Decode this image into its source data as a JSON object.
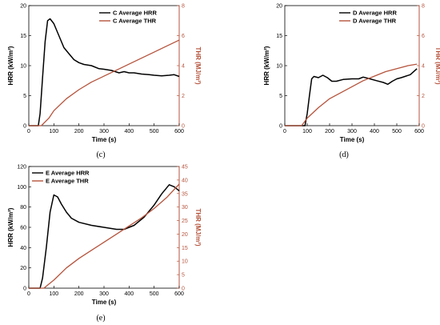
{
  "colors": {
    "hrr": "#000000",
    "thr": "#b5533c"
  },
  "chart_data": [
    {
      "type": "line",
      "caption": "(c)",
      "xlabel": "Time (s)",
      "ylabel": "HRR (kW/m²)",
      "y2label": "THR (MJ/m²)",
      "xlim": [
        0,
        600
      ],
      "ylim": [
        0,
        20
      ],
      "y2lim": [
        0,
        8
      ],
      "xticks": [
        0,
        100,
        200,
        300,
        400,
        500,
        600
      ],
      "yticks": [
        0,
        5,
        10,
        15,
        20
      ],
      "y2ticks": [
        0,
        2,
        4,
        6,
        8
      ],
      "legend": "top-right",
      "series": [
        {
          "name": "C  Average HRR",
          "axis": "left",
          "x": [
            0,
            38,
            45,
            55,
            65,
            75,
            85,
            100,
            120,
            140,
            160,
            180,
            200,
            220,
            250,
            280,
            300,
            330,
            360,
            380,
            400,
            420,
            450,
            480,
            500,
            530,
            560,
            580,
            600
          ],
          "y": [
            0,
            0,
            2,
            8,
            14,
            17.5,
            17.8,
            17,
            15,
            13,
            12,
            11,
            10.5,
            10.2,
            10,
            9.5,
            9.4,
            9.2,
            8.8,
            9,
            8.8,
            8.8,
            8.6,
            8.5,
            8.4,
            8.3,
            8.4,
            8.5,
            8.2
          ]
        },
        {
          "name": "C  Average THR",
          "axis": "right",
          "x": [
            0,
            50,
            80,
            100,
            150,
            200,
            250,
            300,
            350,
            400,
            450,
            500,
            550,
            600
          ],
          "y": [
            0,
            0,
            0.5,
            1.0,
            1.8,
            2.4,
            2.9,
            3.3,
            3.7,
            4.1,
            4.5,
            4.9,
            5.3,
            5.7
          ]
        }
      ]
    },
    {
      "type": "line",
      "caption": "(d)",
      "xlabel": "Time (s)",
      "ylabel": "HRR (kW/m²)",
      "y2label": "THR (MJ/m²)",
      "xlim": [
        0,
        600
      ],
      "ylim": [
        0,
        20
      ],
      "y2lim": [
        0,
        8
      ],
      "xticks": [
        0,
        100,
        200,
        300,
        400,
        500,
        600
      ],
      "yticks": [
        0,
        5,
        10,
        15,
        20
      ],
      "y2ticks": [
        0,
        2,
        4,
        6,
        8
      ],
      "legend": "top-right",
      "series": [
        {
          "name": "D  Average HRR",
          "axis": "left",
          "x": [
            0,
            90,
            100,
            110,
            120,
            130,
            150,
            170,
            190,
            210,
            230,
            260,
            300,
            330,
            350,
            380,
            410,
            440,
            460,
            480,
            500,
            520,
            560,
            590
          ],
          "y": [
            0,
            0,
            2,
            5,
            7.8,
            8.2,
            8.0,
            8.4,
            8.0,
            7.4,
            7.4,
            7.7,
            7.8,
            7.8,
            8.1,
            7.8,
            7.5,
            7.2,
            6.9,
            7.4,
            7.8,
            8.0,
            8.5,
            9.5
          ]
        },
        {
          "name": "D  Average THR",
          "axis": "right",
          "x": [
            0,
            75,
            100,
            150,
            200,
            250,
            300,
            350,
            400,
            450,
            500,
            550,
            590
          ],
          "y": [
            0,
            0,
            0.5,
            1.2,
            1.8,
            2.2,
            2.6,
            3.0,
            3.3,
            3.6,
            3.8,
            4.0,
            4.1
          ]
        }
      ]
    },
    {
      "type": "line",
      "caption": "(e)",
      "xlabel": "Time (s)",
      "ylabel": "HRR (kW/m²)",
      "y2label": "THR (MJ/m²)",
      "xlim": [
        0,
        600
      ],
      "ylim": [
        0,
        120
      ],
      "y2lim": [
        0,
        45
      ],
      "xticks": [
        0,
        100,
        200,
        300,
        400,
        500,
        600
      ],
      "yticks": [
        0,
        20,
        40,
        60,
        80,
        100,
        120
      ],
      "y2ticks": [
        0,
        5,
        10,
        15,
        20,
        25,
        30,
        35,
        40,
        45
      ],
      "legend": "top-left",
      "series": [
        {
          "name": "E Average HRR",
          "axis": "left",
          "x": [
            0,
            45,
            55,
            70,
            85,
            100,
            115,
            130,
            150,
            170,
            200,
            250,
            300,
            350,
            380,
            420,
            460,
            500,
            530,
            560,
            580,
            600
          ],
          "y": [
            0,
            0,
            10,
            40,
            75,
            92,
            90,
            83,
            75,
            69,
            65,
            62,
            60,
            58,
            58,
            62,
            70,
            82,
            93,
            102,
            100,
            96
          ]
        },
        {
          "name": "E Average THR",
          "axis": "right",
          "x": [
            0,
            60,
            100,
            150,
            200,
            250,
            300,
            350,
            400,
            450,
            500,
            550,
            600
          ],
          "y": [
            0,
            0,
            3,
            7.5,
            11,
            14,
            17,
            20,
            23,
            26,
            29.5,
            33.5,
            38.5
          ]
        }
      ]
    }
  ]
}
